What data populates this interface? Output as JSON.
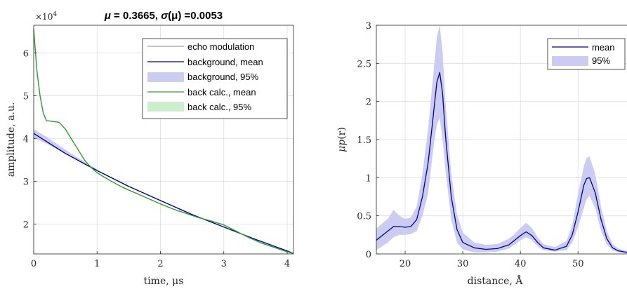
{
  "chart_data": [
    {
      "type": "line",
      "title_parts": {
        "mu_sym": "μ",
        "mu_text": " = 0.3665, ",
        "sigma_sym": "σ",
        "sigma_text": "(μ) =0.0053"
      },
      "xlabel": "time, μs",
      "ylabel": "amplitude, a.u.",
      "y_multiplier": "×10",
      "y_multiplier_exp": "4",
      "xlim": [
        0,
        4.1
      ],
      "ylim": [
        1.3,
        6.65
      ],
      "xticks": [
        0,
        1,
        2,
        3,
        4
      ],
      "yticks": [
        2,
        3,
        4,
        5,
        6
      ],
      "grid": true,
      "legend_position": "top-right",
      "legend": [
        "echo modulation",
        "background, mean",
        "background, 95%",
        "back calc., mean",
        "back calc., 95%"
      ],
      "series": [
        {
          "name": "echo modulation",
          "x": [
            0,
            0.05,
            0.1,
            0.15,
            0.2,
            0.3,
            0.4,
            0.5,
            0.6,
            0.7,
            0.8,
            0.9,
            1.0,
            1.2,
            1.4,
            1.6,
            1.8,
            2.0,
            2.2,
            2.4,
            2.6,
            2.8,
            3.0,
            3.2,
            3.4,
            3.6,
            3.8,
            4.0,
            4.1
          ],
          "y": [
            6.55,
            5.6,
            5.0,
            4.6,
            4.42,
            4.4,
            4.38,
            4.22,
            3.98,
            3.74,
            3.5,
            3.33,
            3.2,
            3.02,
            2.86,
            2.73,
            2.6,
            2.47,
            2.35,
            2.25,
            2.15,
            2.07,
            1.98,
            1.83,
            1.68,
            1.55,
            1.45,
            1.35,
            1.31
          ]
        },
        {
          "name": "background, mean",
          "x": [
            0,
            0.5,
            1.0,
            1.5,
            2.0,
            2.5,
            3.0,
            3.5,
            4.0,
            4.1
          ],
          "y": [
            4.12,
            3.65,
            3.25,
            2.88,
            2.55,
            2.22,
            1.93,
            1.64,
            1.37,
            1.31
          ]
        },
        {
          "name": "back calc., mean",
          "x": [
            0,
            0.05,
            0.1,
            0.15,
            0.2,
            0.3,
            0.4,
            0.5,
            0.6,
            0.7,
            0.8,
            0.9,
            1.0,
            1.2,
            1.4,
            1.6,
            1.8,
            2.0,
            2.2,
            2.4,
            2.6,
            2.8,
            3.0,
            3.2,
            3.4,
            3.6,
            3.8,
            4.0,
            4.1
          ],
          "y": [
            6.55,
            5.6,
            5.0,
            4.6,
            4.42,
            4.4,
            4.38,
            4.22,
            3.98,
            3.74,
            3.5,
            3.33,
            3.2,
            3.02,
            2.86,
            2.73,
            2.6,
            2.47,
            2.35,
            2.25,
            2.15,
            2.07,
            1.98,
            1.83,
            1.68,
            1.55,
            1.45,
            1.35,
            1.31
          ]
        }
      ],
      "bands": [
        {
          "name": "background, 95%",
          "x": [
            0,
            0.2,
            0.4,
            0.6,
            0.8,
            1.0
          ],
          "lower": [
            4.02,
            3.88,
            3.72,
            3.56,
            3.4,
            3.24
          ],
          "upper": [
            4.22,
            4.04,
            3.84,
            3.64,
            3.46,
            3.28
          ]
        }
      ],
      "colors": {
        "echo": "#888888",
        "background": "#00008b",
        "background_band": "#ccccf2",
        "backcalc": "#2ca02c",
        "backcalc_band": "#cdeecd"
      }
    },
    {
      "type": "line",
      "xlabel": "distance, Å",
      "ylabel_parts": {
        "pre": "μp",
        "mid": "(r)"
      },
      "xlim": [
        15,
        58.5
      ],
      "ylim": [
        0,
        3
      ],
      "xticks": [
        20,
        30,
        40,
        50
      ],
      "yticks": [
        0,
        0.5,
        1,
        1.5,
        2,
        2.5,
        3
      ],
      "ytick_labels": [
        "0",
        "0.5",
        "1",
        "1.5",
        "2",
        "2.5",
        "3"
      ],
      "grid": true,
      "legend_position": "top-right",
      "legend": [
        "mean",
        "95%"
      ],
      "series": [
        {
          "name": "mean",
          "x": [
            15,
            16,
            17,
            18,
            19,
            20,
            21,
            22,
            23,
            24,
            25,
            25.5,
            26,
            26.5,
            27,
            28,
            29,
            30,
            32,
            34,
            36,
            38,
            39,
            40,
            41,
            42,
            43,
            44,
            46,
            48,
            49,
            50,
            51,
            51.5,
            52,
            53,
            54,
            55,
            56,
            57,
            58.5
          ],
          "y": [
            0.18,
            0.24,
            0.3,
            0.36,
            0.36,
            0.35,
            0.36,
            0.45,
            0.75,
            1.2,
            1.9,
            2.25,
            2.38,
            2.1,
            1.55,
            0.75,
            0.32,
            0.15,
            0.08,
            0.06,
            0.07,
            0.12,
            0.18,
            0.24,
            0.29,
            0.24,
            0.15,
            0.08,
            0.05,
            0.1,
            0.25,
            0.55,
            0.9,
            0.99,
            1.0,
            0.8,
            0.45,
            0.2,
            0.08,
            0.04,
            0.02
          ]
        }
      ],
      "bands": [
        {
          "name": "95%",
          "x": [
            15,
            16,
            17,
            18,
            19,
            20,
            21,
            22,
            23,
            24,
            25,
            25.5,
            26,
            26.5,
            27,
            28,
            29,
            30,
            32,
            34,
            36,
            38,
            39,
            40,
            41,
            42,
            43,
            44,
            46,
            48,
            49,
            50,
            51,
            51.5,
            52,
            53,
            54,
            55,
            56,
            57,
            58.5
          ],
          "lower": [
            0.05,
            0.1,
            0.15,
            0.22,
            0.25,
            0.25,
            0.26,
            0.3,
            0.5,
            0.8,
            1.45,
            1.7,
            1.78,
            1.5,
            1.1,
            0.45,
            0.15,
            0.06,
            0.02,
            0.02,
            0.03,
            0.07,
            0.12,
            0.18,
            0.22,
            0.18,
            0.1,
            0.05,
            0.03,
            0.05,
            0.15,
            0.35,
            0.6,
            0.72,
            0.76,
            0.6,
            0.3,
            0.12,
            0.05,
            0.02,
            0.01
          ],
          "upper": [
            0.33,
            0.4,
            0.46,
            0.58,
            0.5,
            0.46,
            0.48,
            0.62,
            1.05,
            1.65,
            2.45,
            2.85,
            3.0,
            2.65,
            2.0,
            1.05,
            0.52,
            0.28,
            0.15,
            0.12,
            0.13,
            0.2,
            0.26,
            0.34,
            0.41,
            0.34,
            0.22,
            0.13,
            0.09,
            0.17,
            0.38,
            0.78,
            1.15,
            1.26,
            1.28,
            1.05,
            0.62,
            0.3,
            0.13,
            0.07,
            0.04
          ]
        }
      ],
      "colors": {
        "mean": "#00008b",
        "band": "#ccccf2"
      }
    }
  ]
}
